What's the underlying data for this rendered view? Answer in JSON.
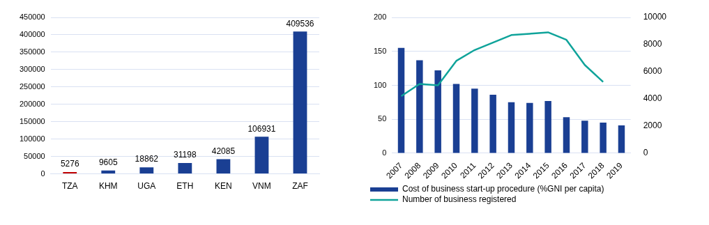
{
  "chart_data": [
    {
      "type": "bar",
      "categories": [
        "TZA",
        "KHM",
        "UGA",
        "ETH",
        "KEN",
        "VNM",
        "ZAF"
      ],
      "values": [
        5276,
        9605,
        18862,
        31198,
        42085,
        106931,
        409536
      ],
      "colors": [
        "#c00000",
        "#1a3f93",
        "#1a3f93",
        "#1a3f93",
        "#1a3f93",
        "#1a3f93",
        "#1a3f93"
      ],
      "ylim": [
        0,
        450000
      ],
      "yticks": [
        0,
        50000,
        100000,
        150000,
        200000,
        250000,
        300000,
        350000,
        400000,
        450000
      ],
      "grid": "y",
      "data_labels": true
    },
    {
      "type": "bar",
      "categories": [
        "2007",
        "2008",
        "2009",
        "2010",
        "2011",
        "2012",
        "2013",
        "2014",
        "2015",
        "2016",
        "2017",
        "2018",
        "2019"
      ],
      "series": [
        {
          "name": "Cost of business start-up procedure (%GNI per capita)",
          "type": "bar",
          "color": "#1a3f93",
          "values": [
            155,
            137,
            122,
            102,
            95,
            86,
            75,
            74,
            77,
            53,
            48,
            45,
            41
          ]
        },
        {
          "name": "Number of business registered",
          "type": "line",
          "axis": "y2",
          "color": "#0fa39a",
          "values": [
            4200,
            5100,
            5000,
            6800,
            7600,
            8150,
            8700,
            8800,
            8900,
            8350,
            6500,
            5250,
            null
          ]
        }
      ],
      "ylim": [
        0,
        200
      ],
      "yticks": [
        0,
        50,
        100,
        150,
        200
      ],
      "y2lim": [
        0,
        10000
      ],
      "y2ticks": [
        0,
        2000,
        4000,
        6000,
        8000,
        10000
      ],
      "grid": "y",
      "legend": "bottom",
      "marker": "none"
    }
  ]
}
